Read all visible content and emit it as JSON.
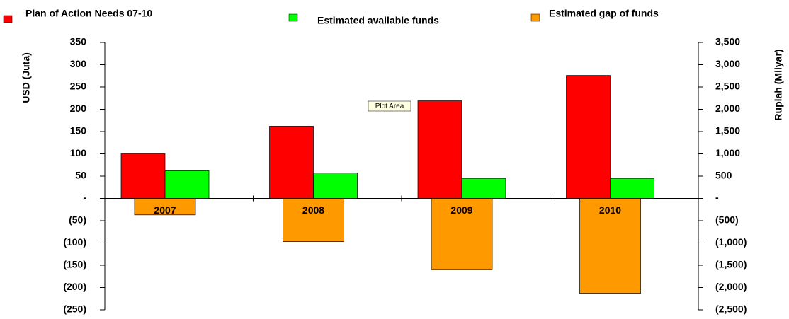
{
  "chart_data": {
    "type": "bar",
    "annotation": "Plot Area",
    "y_label": "USD (Juta)",
    "y2_label": "Rupiah (Milyar)",
    "categories": [
      "2007",
      "2008",
      "2009",
      "2010"
    ],
    "series": [
      {
        "name": "Plan of Action Needs 07-10",
        "color": "#ff0000",
        "values": [
          100,
          162,
          219,
          276
        ]
      },
      {
        "name": "Estimated available funds",
        "color": "#00ff00",
        "values": [
          62,
          57,
          45,
          45
        ]
      },
      {
        "name": "Estimated gap of funds",
        "color": "#ff9900",
        "values": [
          -37,
          -97,
          -160,
          -213
        ]
      }
    ],
    "ylim": [
      -250,
      350
    ],
    "yticks": [
      {
        "value": -250,
        "label": "(250)"
      },
      {
        "value": -200,
        "label": "(200)"
      },
      {
        "value": -150,
        "label": "(150)"
      },
      {
        "value": -100,
        "label": "(100)"
      },
      {
        "value": -50,
        "label": "(50)"
      },
      {
        "value": 0,
        "label": "-"
      },
      50,
      100,
      150,
      200,
      250,
      300,
      350
    ],
    "y2lim": [
      -2500,
      3500
    ],
    "y2ticks": [
      {
        "value": -2500,
        "label": "(2,500)"
      },
      {
        "value": -2000,
        "label": "(2,000)"
      },
      {
        "value": -1500,
        "label": "(1,500)"
      },
      {
        "value": -1000,
        "label": "(1,000)"
      },
      {
        "value": -500,
        "label": "(500)"
      },
      {
        "value": 0,
        "label": "-"
      },
      500,
      {
        "value": 1000,
        "label": "1,000"
      },
      {
        "value": 1500,
        "label": "1,500"
      },
      {
        "value": 2000,
        "label": "2,000"
      },
      {
        "value": 2500,
        "label": "2,500"
      },
      {
        "value": 3000,
        "label": "3,000"
      },
      {
        "value": 3500,
        "label": "3,500"
      }
    ],
    "grid": false
  }
}
